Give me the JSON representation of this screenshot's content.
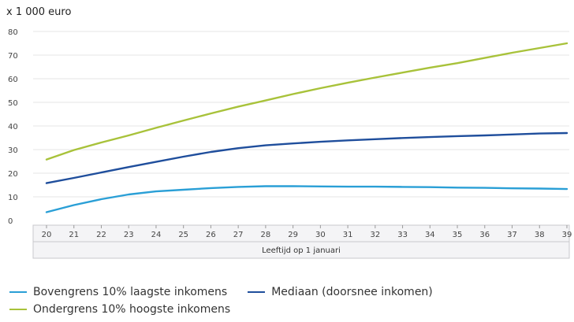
{
  "chart_data": {
    "type": "line",
    "unit_label": "x 1 000 euro",
    "xlabel": "Leeftijd op 1 januari",
    "ylabel": "",
    "x": [
      20,
      21,
      22,
      23,
      24,
      25,
      26,
      27,
      28,
      29,
      30,
      31,
      32,
      33,
      34,
      35,
      36,
      37,
      38,
      39
    ],
    "ylim": [
      0,
      80
    ],
    "yticks": [
      0,
      10,
      20,
      30,
      40,
      50,
      60,
      70,
      80
    ],
    "grid": true,
    "legend_position": "bottom",
    "series": [
      {
        "name": "Bovengrens 10% laagste inkomens",
        "color": "#2a9fd6",
        "values": [
          3.5,
          6.5,
          9.0,
          11.0,
          12.3,
          13.0,
          13.7,
          14.2,
          14.5,
          14.5,
          14.4,
          14.3,
          14.3,
          14.2,
          14.1,
          13.9,
          13.8,
          13.6,
          13.5,
          13.3
        ]
      },
      {
        "name": "Mediaan (doorsnee inkomen)",
        "color": "#1f4e9c",
        "values": [
          15.8,
          18.0,
          20.3,
          22.6,
          24.8,
          27.0,
          29.0,
          30.6,
          31.8,
          32.6,
          33.3,
          33.9,
          34.4,
          34.9,
          35.3,
          35.7,
          36.0,
          36.4,
          36.8,
          37.0
        ]
      },
      {
        "name": "Ondergrens 10% hoogste inkomens",
        "color": "#a8c23a",
        "values": [
          25.8,
          29.8,
          33.0,
          36.0,
          39.2,
          42.3,
          45.3,
          48.2,
          50.8,
          53.5,
          56.0,
          58.3,
          60.5,
          62.6,
          64.7,
          66.6,
          68.8,
          71.0,
          73.0,
          75.0
        ]
      }
    ]
  }
}
